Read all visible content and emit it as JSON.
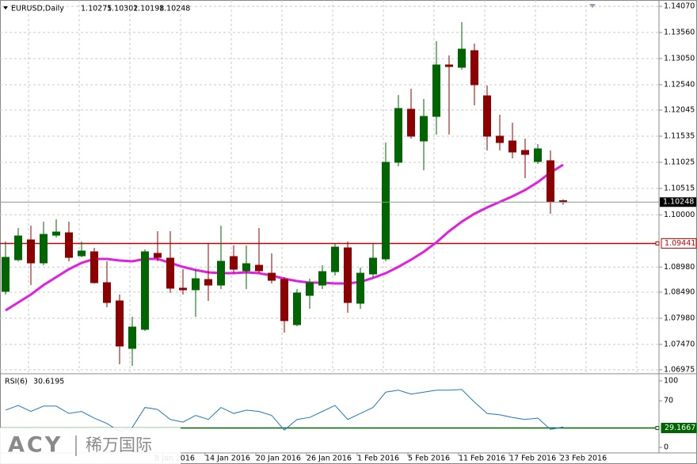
{
  "chart_data": [
    {
      "type": "candlestick",
      "title": "EURUSD,Daily",
      "x": [
        null,
        null,
        null,
        null,
        null,
        null,
        null,
        null,
        null,
        null,
        null,
        null,
        "8 Jan 2016",
        null,
        null,
        null,
        "14 Jan 2016",
        null,
        null,
        null,
        "20 Jan 2016",
        null,
        null,
        null,
        "26 Jan 2016",
        null,
        null,
        null,
        "1 Feb 2016",
        null,
        null,
        null,
        "5 Feb 2016",
        null,
        null,
        null,
        "11 Feb 2016",
        null,
        null,
        null,
        "17 Feb 2016",
        null,
        null,
        null,
        "23 Feb 2016"
      ],
      "open": [
        1.08505,
        1.09123,
        1.0951,
        1.09061,
        1.09602,
        1.09649,
        1.092,
        1.09278,
        1.08675,
        1.08319,
        1.07392,
        1.07763,
        1.09247,
        1.09154,
        1.08567,
        1.08536,
        1.08737,
        1.08628,
        1.09185,
        1.08907,
        1.09015,
        1.0886,
        1.08737,
        1.07855,
        1.08427,
        1.08628,
        1.08891,
        1.09355,
        1.08273,
        1.08845,
        1.09139,
        1.11025,
        1.12061,
        1.11442,
        1.11921,
        1.12926,
        1.1288,
        1.13205,
        1.12323,
        1.11535,
        1.11442,
        1.11257,
        1.1104,
        1.11056,
        1.10275
      ],
      "high": [
        1.09479,
        1.09742,
        1.09788,
        1.09865,
        1.09912,
        1.09865,
        1.09479,
        1.09355,
        1.09092,
        1.08443,
        1.0801,
        1.09324,
        1.0968,
        1.0968,
        1.08938,
        1.08938,
        1.09432,
        1.09788,
        1.09401,
        1.09401,
        1.09742,
        1.09247,
        1.08783,
        1.08551,
        1.08752,
        1.09015,
        1.09432,
        1.09479,
        1.08969,
        1.09432,
        1.11411,
        1.12339,
        1.12462,
        1.12261,
        1.1339,
        1.13112,
        1.13761,
        1.13344,
        1.12524,
        1.11952,
        1.11798,
        1.11488,
        1.1138,
        1.11257,
        1.10302
      ],
      "low": [
        1.08443,
        1.09092,
        1.08628,
        1.09015,
        1.09556,
        1.09092,
        1.09169,
        1.08659,
        1.08196,
        1.07082,
        1.07051,
        1.07732,
        1.09092,
        1.08474,
        1.08443,
        1.0801,
        1.08319,
        1.08551,
        1.0886,
        1.08551,
        1.0886,
        1.08659,
        1.07701,
        1.07824,
        1.08165,
        1.08551,
        1.08814,
        1.08087,
        1.08165,
        1.08783,
        1.09092,
        1.10947,
        1.11488,
        1.1087,
        1.11566,
        1.11566,
        1.12834,
        1.12138,
        1.11257,
        1.11257,
        1.11102,
        1.10715,
        1.10994,
        1.1002,
        1.10198
      ],
      "close": [
        1.09169,
        1.09587,
        1.09061,
        1.09618,
        1.09664,
        1.09169,
        1.09293,
        1.08675,
        1.08288,
        1.07438,
        1.07809,
        1.09278,
        1.09169,
        1.08567,
        1.08536,
        1.08752,
        1.08628,
        1.09092,
        1.08938,
        1.09046,
        1.08907,
        1.08721,
        1.07933,
        1.08474,
        1.08675,
        1.08891,
        1.0937,
        1.08288,
        1.0886,
        1.09154,
        1.11025,
        1.12076,
        1.11535,
        1.11921,
        1.12926,
        1.12895,
        1.13235,
        1.1254,
        1.11535,
        1.11411,
        1.11226,
        1.11179,
        1.11288,
        1.10252,
        1.10248
      ],
      "up_color": "#006400",
      "down_color": "#8b0000",
      "ma": {
        "color": "#e020e0",
        "values": [
          1.08134,
          1.08288,
          1.08443,
          1.08628,
          1.08783,
          1.08938,
          1.09061,
          1.09139,
          1.09139,
          1.09108,
          1.09092,
          1.09139,
          1.09139,
          1.09061,
          1.08984,
          1.08922,
          1.08876,
          1.0886,
          1.0886,
          1.08876,
          1.0886,
          1.08814,
          1.08752,
          1.08706,
          1.08675,
          1.08675,
          1.08659,
          1.08659,
          1.0869,
          1.08768,
          1.0886,
          1.08984,
          1.09123,
          1.09278,
          1.09463,
          1.0968,
          1.09865,
          1.1002,
          1.10143,
          1.10252,
          1.1036,
          1.10484,
          1.10638,
          1.10824,
          1.10978
        ]
      },
      "hlines": [
        {
          "value": 1.09441,
          "color": "#cc0000"
        }
      ],
      "ylim": [
        1.06928,
        1.14194
      ],
      "yticks": [
        {
          "value": 1.1407,
          "label": "1.14070"
        },
        {
          "value": 1.1356,
          "label": "1.13560"
        },
        {
          "value": 1.1305,
          "label": "1.13050"
        },
        {
          "value": 1.1254,
          "label": "1.12540"
        },
        1.12045,
        1.11535,
        1.11025,
        1.10515,
        {
          "value": 1.1,
          "label": "1.10000"
        },
        {
          "value": 1.0898,
          "label": "1.08980"
        },
        {
          "value": 1.0849,
          "label": "1.08490"
        },
        {
          "value": 1.0798,
          "label": "1.07980"
        },
        {
          "value": 1.0747,
          "label": "1.07470"
        },
        1.06975
      ],
      "grid": true
    },
    {
      "type": "line",
      "title": "RSI(6)",
      "color": "#1e78c8",
      "values": [
        56,
        63,
        54,
        62,
        62,
        51,
        54,
        44,
        36,
        24,
        30,
        60,
        57,
        42,
        38,
        48,
        42,
        60,
        51,
        56,
        54,
        48,
        26,
        42,
        45,
        54,
        63,
        42,
        51,
        60,
        83,
        86,
        80,
        83,
        86,
        86,
        87,
        68,
        51,
        49,
        45,
        42,
        44,
        27,
        30.6195
      ],
      "hlines": [
        {
          "value": 29.1667,
          "color": "#006400"
        }
      ],
      "ylim": [
        -8.3,
        108.3
      ],
      "yticks": [
        0,
        70,
        100
      ],
      "grid": false
    }
  ],
  "watermark": {
    "brand": "ACY",
    "name": "稀万国际"
  }
}
